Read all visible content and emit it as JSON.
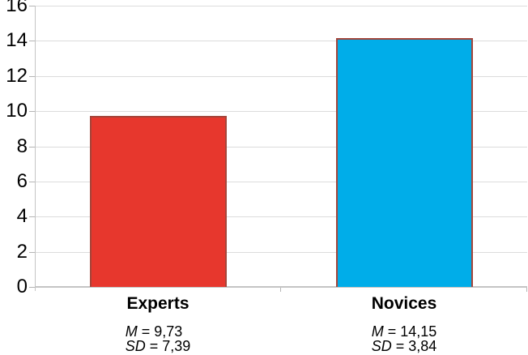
{
  "chart_data": {
    "type": "bar",
    "title": "",
    "xlabel": "",
    "ylabel": "",
    "categories": [
      "Experts",
      "Novices"
    ],
    "values": [
      9.73,
      14.15
    ],
    "sd_values": [
      7.39,
      3.84
    ],
    "ylim": [
      0,
      16
    ],
    "yticks": [
      0,
      2,
      4,
      6,
      8,
      10,
      12,
      14,
      16
    ],
    "ytick_labels": [
      "0",
      "2",
      "4",
      "6",
      "8",
      "10",
      "12",
      "14",
      "16"
    ],
    "grid": true,
    "legend": "none",
    "bar_fill_colors": [
      "#E7372D",
      "#00ADE9"
    ],
    "bar_border_color": "#A5453A",
    "gridline_color": "#DCDCDC",
    "axis_color": "#C4C4C4",
    "tick_color": "#B5B5B5",
    "text_color": "#000000",
    "background_color": "#FFFFFF",
    "stats": [
      {
        "lines": [
          {
            "sym": "M",
            "rest": " = 9,73"
          },
          {
            "sym": "SD",
            "rest": " = 7,39"
          }
        ]
      },
      {
        "lines": [
          {
            "sym": "M",
            "rest": " = 14,15"
          },
          {
            "sym": "SD",
            "rest": " = 3,84"
          }
        ]
      }
    ]
  }
}
